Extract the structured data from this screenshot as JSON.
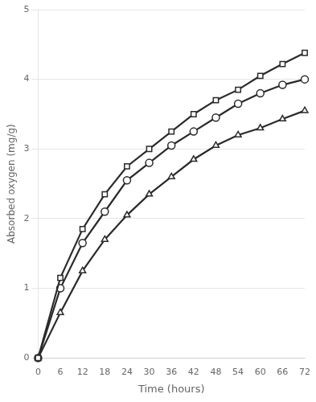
{
  "chart_data": {
    "type": "line",
    "x": [
      0,
      6,
      12,
      18,
      24,
      30,
      36,
      42,
      48,
      54,
      60,
      66,
      72
    ],
    "series": [
      {
        "color": "#2a2a2a",
        "marker": "square",
        "values": [
          0,
          1.15,
          1.85,
          2.35,
          2.75,
          3.0,
          3.25,
          3.5,
          3.7,
          3.85,
          4.05,
          4.22,
          4.38
        ]
      },
      {
        "color": "#2a2a2a",
        "marker": "circle",
        "values": [
          0,
          1.0,
          1.65,
          2.1,
          2.55,
          2.8,
          3.05,
          3.25,
          3.45,
          3.65,
          3.8,
          3.92,
          4.0
        ]
      },
      {
        "color": "#2a2a2a",
        "marker": "triangle",
        "values": [
          0,
          0.65,
          1.25,
          1.7,
          2.05,
          2.35,
          2.6,
          2.85,
          3.05,
          3.2,
          3.3,
          3.43,
          3.55
        ]
      }
    ],
    "xlabel": "Time (hours)",
    "ylabel": "Absorbed oxygen (mg/g)",
    "xlim": [
      0,
      72
    ],
    "ylim": [
      0,
      5
    ],
    "xticks": [
      0,
      6,
      12,
      18,
      24,
      30,
      36,
      42,
      48,
      54,
      60,
      66,
      72
    ],
    "yticks": [
      0,
      1,
      2,
      3,
      4,
      5
    ],
    "grid": "y"
  }
}
